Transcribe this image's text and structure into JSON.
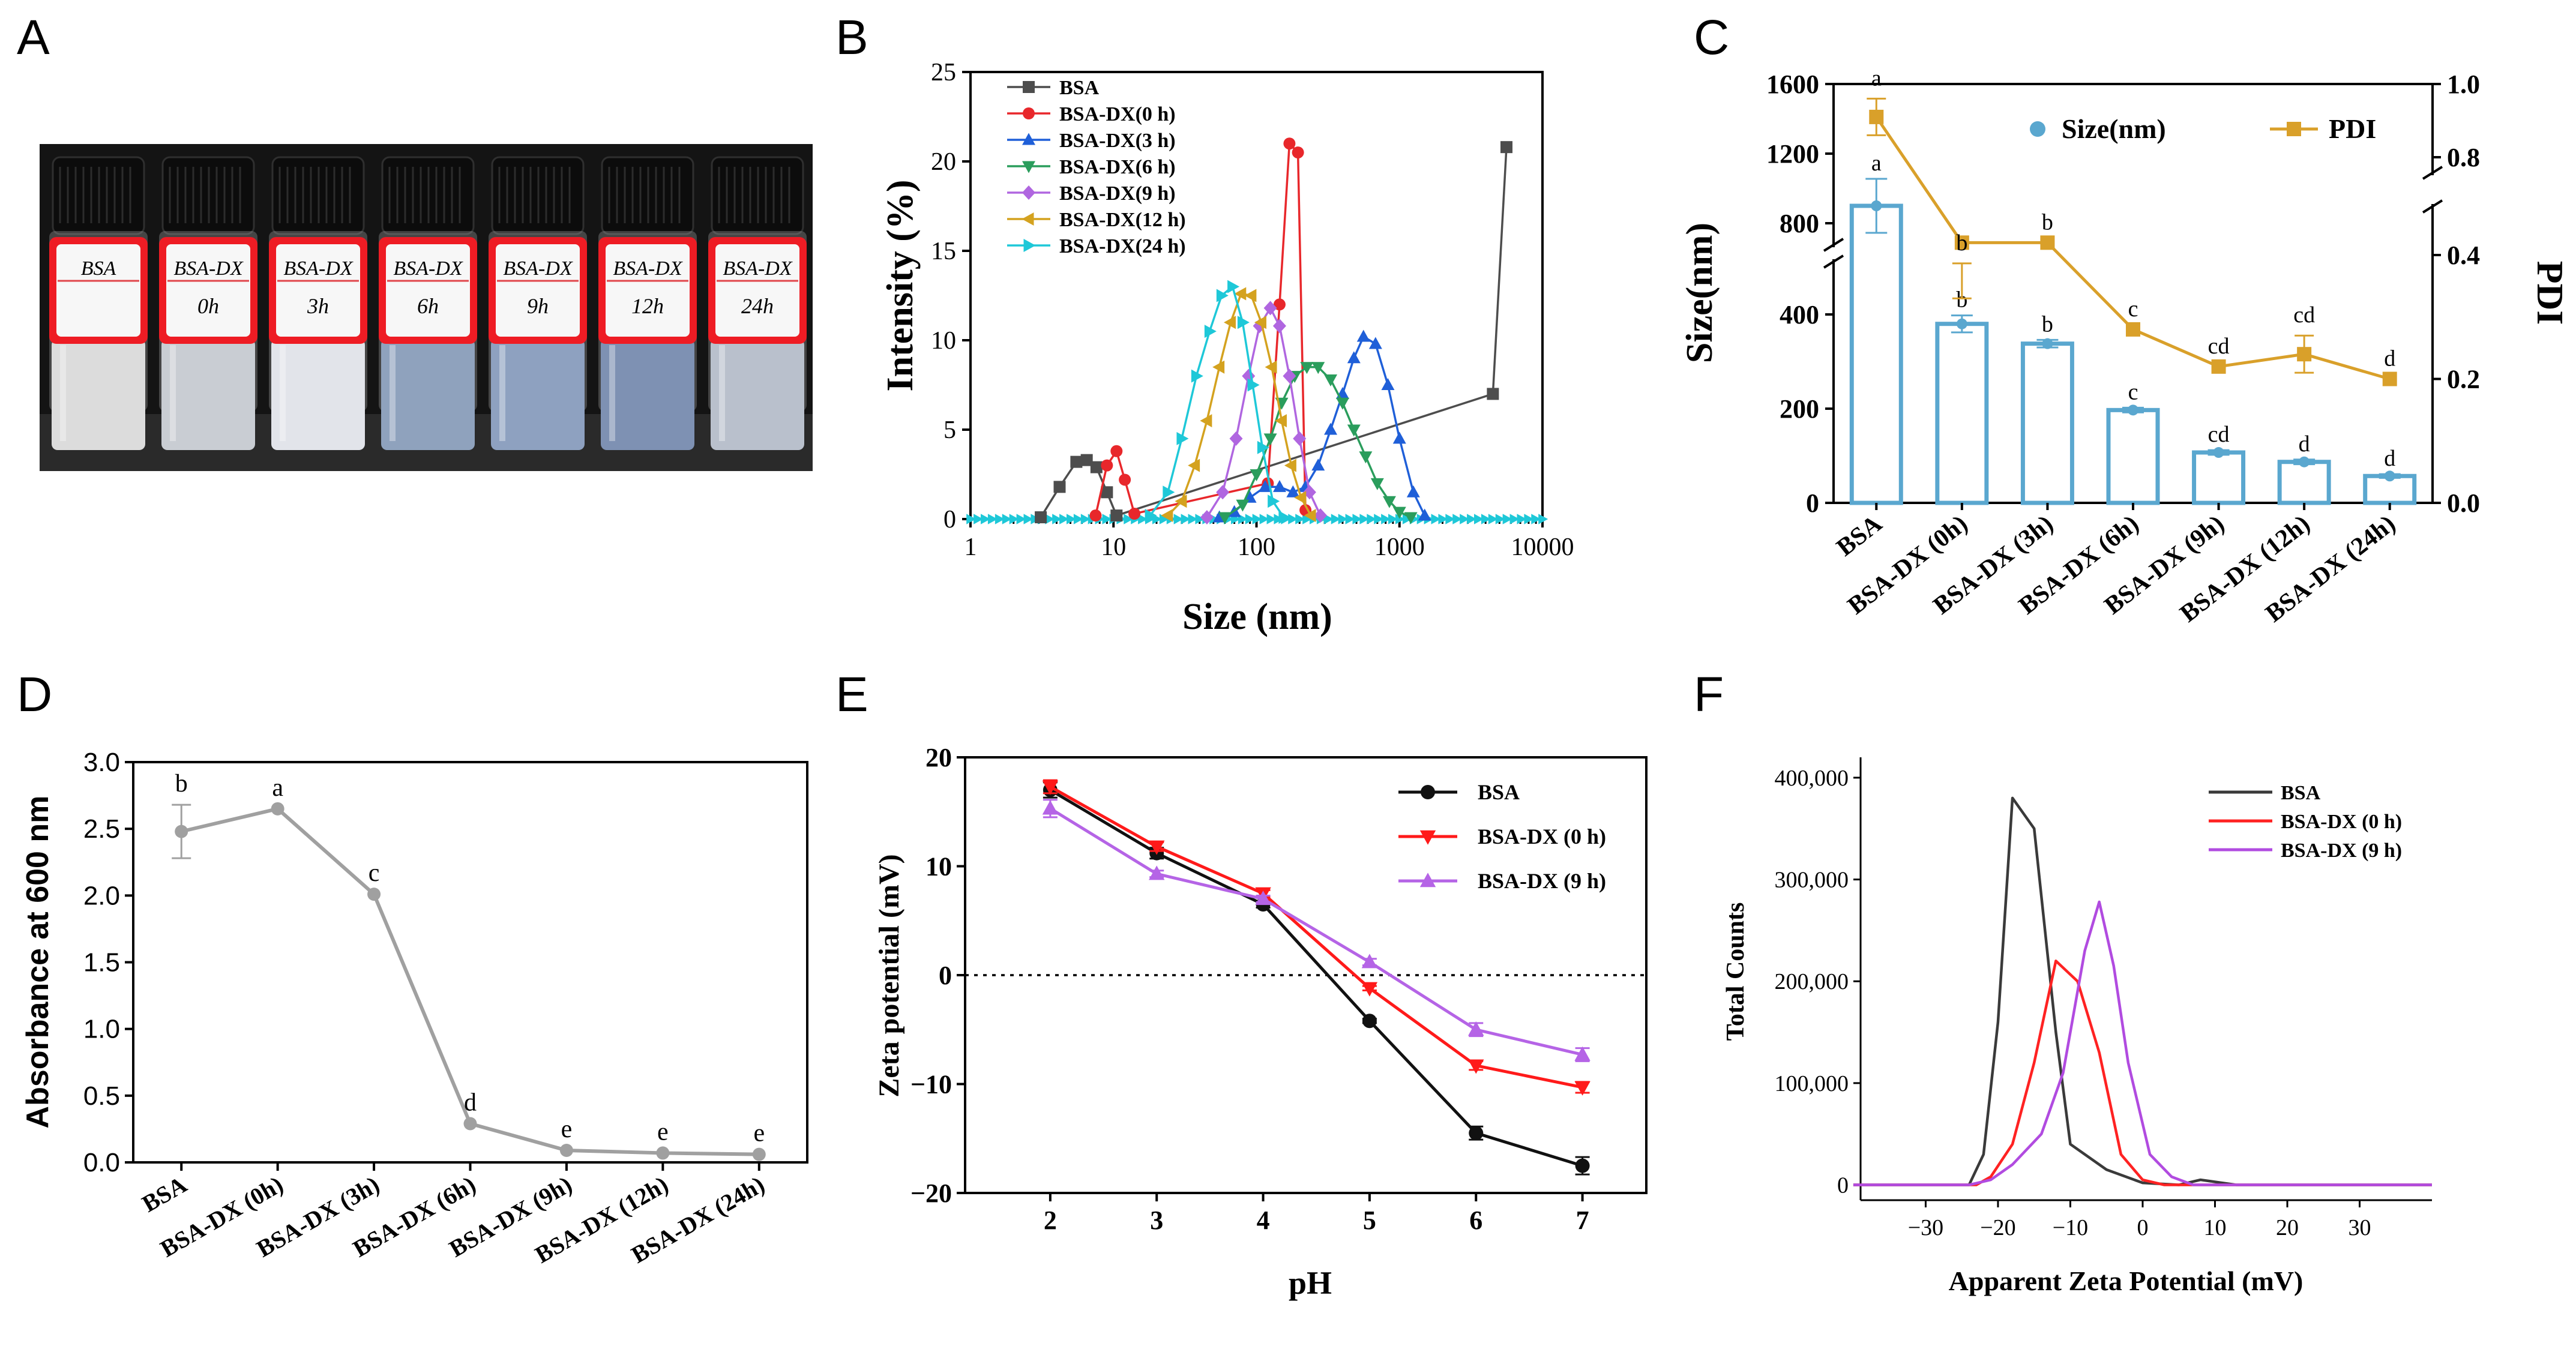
{
  "figure": {
    "panel_letters": [
      "A",
      "B",
      "C",
      "D",
      "E",
      "F"
    ]
  },
  "photo": {
    "vial_labels": [
      {
        "line1": "BSA",
        "line2": ""
      },
      {
        "line1": "BSA-DX",
        "line2": "0h"
      },
      {
        "line1": "BSA-DX",
        "line2": "3h"
      },
      {
        "line1": "BSA-DX",
        "line2": "6h"
      },
      {
        "line1": "BSA-DX",
        "line2": "9h"
      },
      {
        "line1": "BSA-DX",
        "line2": "12h"
      },
      {
        "line1": "BSA-DX",
        "line2": "24h"
      }
    ],
    "liquid_colors": [
      "#dcdcdc",
      "#c9cdd3",
      "#e2e4ea",
      "#8fa2bd",
      "#8ea1c0",
      "#7e91b3",
      "#b9c0cc"
    ]
  },
  "chart_data": [
    {
      "panel": "B",
      "type": "line",
      "xscale": "log",
      "xlabel": "Size (nm)",
      "ylabel": "Intensity (%)",
      "xlim": [
        1,
        10000
      ],
      "ylim": [
        0,
        25
      ],
      "xticks": [
        1,
        10,
        100,
        1000,
        10000
      ],
      "xtick_labels": [
        "1",
        "10",
        "100",
        "1000",
        "10000"
      ],
      "yticks": [
        0,
        5,
        10,
        15,
        20,
        25
      ],
      "ytick_labels": [
        "0",
        "5",
        "10",
        "15",
        "20",
        "25"
      ],
      "legend": "top-left",
      "series": [
        {
          "name": "BSA",
          "color": "#4d4d4d",
          "marker": "square",
          "x": [
            3.1,
            4.2,
            5.5,
            6.5,
            7.6,
            9.0,
            10.5,
            4500,
            5600
          ],
          "y": [
            0.1,
            1.8,
            3.2,
            3.3,
            2.9,
            1.5,
            0.2,
            7.0,
            20.8
          ]
        },
        {
          "name": "BSA-DX(0 h)",
          "color": "#e8272b",
          "marker": "circle",
          "x": [
            7.5,
            9.0,
            10.5,
            12.0,
            14.0,
            120,
            145,
            170,
            195,
            220
          ],
          "y": [
            0.2,
            3.0,
            3.8,
            2.2,
            0.3,
            2.0,
            12.0,
            21.0,
            20.5,
            0.5
          ]
        },
        {
          "name": "BSA-DX(3 h)",
          "color": "#1f5fd8",
          "marker": "triangle-up",
          "x": [
            55,
            70,
            90,
            115,
            145,
            180,
            220,
            270,
            330,
            400,
            480,
            560,
            680,
            830,
            1000,
            1250,
            1500
          ],
          "y": [
            0.1,
            0.4,
            1.2,
            1.8,
            1.8,
            1.5,
            1.8,
            3.0,
            5.0,
            7.0,
            9.0,
            10.2,
            9.8,
            7.5,
            4.5,
            1.5,
            0.2
          ]
        },
        {
          "name": "BSA-DX(6 h)",
          "color": "#2a9d5c",
          "marker": "triangle-down",
          "x": [
            60,
            80,
            100,
            125,
            150,
            185,
            225,
            270,
            330,
            400,
            480,
            580,
            700,
            850,
            1000,
            1200
          ],
          "y": [
            0.1,
            0.8,
            2.5,
            4.5,
            6.5,
            8.0,
            8.5,
            8.5,
            7.8,
            6.5,
            5.0,
            3.5,
            2.0,
            1.0,
            0.4,
            0.1
          ]
        },
        {
          "name": "BSA-DX(9 h)",
          "color": "#b066e0",
          "marker": "diamond",
          "x": [
            45,
            58,
            72,
            88,
            105,
            125,
            145,
            170,
            200,
            235,
            280
          ],
          "y": [
            0.1,
            1.5,
            4.5,
            8.0,
            10.8,
            11.8,
            10.8,
            8.0,
            4.5,
            1.5,
            0.2
          ]
        },
        {
          "name": "BSA-DX(12 h)",
          "color": "#d4a21f",
          "marker": "triangle-left",
          "x": [
            24,
            30,
            37,
            45,
            55,
            66,
            78,
            92,
            108,
            128,
            150,
            175,
            205,
            240
          ],
          "y": [
            0.2,
            1.0,
            3.0,
            5.5,
            8.5,
            11.0,
            12.6,
            12.5,
            11.0,
            8.5,
            5.5,
            3.0,
            1.2,
            0.2
          ]
        },
        {
          "name": "BSA-DX(24 h)",
          "color": "#1ec8d8",
          "marker": "triangle-right",
          "x": [
            18,
            24,
            30,
            38,
            47,
            57,
            68,
            80,
            94,
            110,
            130,
            155
          ],
          "y": [
            0.2,
            1.5,
            4.5,
            8.0,
            10.5,
            12.5,
            13.0,
            11.0,
            7.5,
            4.0,
            1.0,
            0.1
          ]
        }
      ],
      "baseline_marker_color": "#1ec8d8"
    },
    {
      "panel": "C",
      "type": "bar",
      "categories": [
        "BSA",
        "BSA-DX (0h)",
        "BSA-DX (3h)",
        "BSA-DX (6h)",
        "BSA-DX (9h)",
        "BSA-DX (12h)",
        "BSA-DX (24h)"
      ],
      "ylabel": "Size(nm)",
      "y2label": "PDI",
      "ylim": [
        0,
        1600
      ],
      "y_axis_break": [
        450,
        700
      ],
      "yticks": [
        0,
        200,
        400,
        800,
        1200,
        1600
      ],
      "ytick_labels": [
        "0",
        "200",
        "400",
        "800",
        "1200",
        "1600"
      ],
      "y2lim": [
        0,
        1.0
      ],
      "y2_axis_break": [
        0.47,
        0.77
      ],
      "y2ticks": [
        0.0,
        0.2,
        0.4,
        0.8,
        1.0
      ],
      "y2tick_labels": [
        "0.0",
        "0.2",
        "0.4",
        "0.8",
        "1.0"
      ],
      "legend": "top-right",
      "series": [
        {
          "name": "Size(nm)",
          "type": "bar",
          "color": "#5aa7cf",
          "values": [
            900,
            380,
            338,
            197,
            107,
            87,
            57
          ],
          "errors": [
            155,
            18,
            8,
            5,
            5,
            5,
            4
          ],
          "letters": [
            "a",
            "b",
            "b",
            "c",
            "cd",
            "d",
            "d"
          ]
        },
        {
          "name": "PDI",
          "type": "line",
          "color": "#d9a02a",
          "values": [
            0.91,
            0.42,
            0.42,
            0.28,
            0.22,
            0.24,
            0.2
          ],
          "errors": [
            0.05,
            0.09,
            0.0,
            0.0,
            0.0,
            0.03,
            0.0
          ],
          "letters": [
            "a",
            "b",
            "b",
            "c",
            "cd",
            "cd",
            "d"
          ]
        }
      ]
    },
    {
      "panel": "D",
      "type": "line",
      "categories": [
        "BSA",
        "BSA-DX (0h)",
        "BSA-DX (3h)",
        "BSA-DX (6h)",
        "BSA-DX (9h)",
        "BSA-DX (12h)",
        "BSA-DX (24h)"
      ],
      "ylabel": "Absorbance at 600 nm",
      "ylim": [
        0,
        3.0
      ],
      "yticks": [
        0.0,
        0.5,
        1.0,
        1.5,
        2.0,
        2.5,
        3.0
      ],
      "ytick_labels": [
        "0.0",
        "0.5",
        "1.0",
        "1.5",
        "2.0",
        "2.5",
        "3.0"
      ],
      "series": [
        {
          "name": "Absorbance",
          "color": "#a0a0a0",
          "values": [
            2.48,
            2.65,
            2.01,
            0.29,
            0.09,
            0.07,
            0.06
          ],
          "errors": [
            0.2,
            0.0,
            0.0,
            0.0,
            0.0,
            0.0,
            0.0
          ],
          "letters": [
            "b",
            "a",
            "c",
            "d",
            "e",
            "e",
            "e"
          ]
        }
      ]
    },
    {
      "panel": "E",
      "type": "line",
      "xlabel": "pH",
      "ylabel": "Zeta potential (mV)",
      "xlim": [
        1.2,
        7.6
      ],
      "ylim": [
        -20,
        20
      ],
      "xticks": [
        2,
        3,
        4,
        5,
        6,
        7
      ],
      "xtick_labels": [
        "2",
        "3",
        "4",
        "5",
        "6",
        "7"
      ],
      "yticks": [
        -20,
        -10,
        0,
        10,
        20
      ],
      "ytick_labels": [
        "−20",
        "−10",
        "0",
        "10",
        "20"
      ],
      "zero_line": "dotted",
      "legend": "top-right",
      "series": [
        {
          "name": "BSA",
          "color": "#111111",
          "marker": "circle",
          "x": [
            2,
            3,
            4,
            5,
            6,
            7
          ],
          "y": [
            17.0,
            11.2,
            6.5,
            -4.2,
            -14.5,
            -17.5
          ],
          "errors": [
            0.7,
            0.5,
            0.3,
            0.2,
            0.6,
            0.8
          ]
        },
        {
          "name": "BSA-DX (0 h)",
          "color": "#ff1a1a",
          "marker": "triangle-down",
          "x": [
            2,
            3,
            4,
            5,
            6,
            7
          ],
          "y": [
            17.3,
            11.8,
            7.5,
            -1.2,
            -8.3,
            -10.3
          ],
          "errors": [
            0.6,
            0.4,
            0.3,
            0.2,
            0.4,
            0.5
          ]
        },
        {
          "name": "BSA-DX (9 h)",
          "color": "#b564e6",
          "marker": "triangle-up",
          "x": [
            2,
            3,
            4,
            5,
            6,
            7
          ],
          "y": [
            15.3,
            9.3,
            7.0,
            1.2,
            -5.0,
            -7.3
          ],
          "errors": [
            0.8,
            0.3,
            0.3,
            0.3,
            0.6,
            0.6
          ]
        }
      ]
    },
    {
      "panel": "F",
      "type": "line",
      "xlabel": "Apparent Zeta Potential (mV)",
      "ylabel": "Total Counts",
      "xlim": [
        -39,
        40
      ],
      "ylim": [
        -15000,
        420000
      ],
      "xticks": [
        -30,
        -20,
        -10,
        0,
        10,
        20,
        30
      ],
      "xtick_labels": [
        "−30",
        "−20",
        "−10",
        "0",
        "10",
        "20",
        "30"
      ],
      "yticks": [
        0,
        100000,
        200000,
        300000,
        400000
      ],
      "ytick_labels": [
        "0",
        "100,000",
        "200,000",
        "300,000",
        "400,000"
      ],
      "legend": "top-right",
      "series": [
        {
          "name": "BSA",
          "color": "#3a3a3a",
          "x": [
            -40,
            -24,
            -22,
            -20,
            -18,
            -15,
            -12,
            -10,
            -5,
            0,
            5,
            8,
            10,
            13,
            40
          ],
          "y": [
            0,
            0,
            30000,
            160000,
            380000,
            350000,
            150000,
            40000,
            15000,
            2000,
            0,
            5000,
            3000,
            0,
            0
          ]
        },
        {
          "name": "BSA-DX (0 h)",
          "color": "#ff2222",
          "x": [
            -40,
            -23,
            -21,
            -18,
            -15,
            -12,
            -9,
            -6,
            -3,
            0,
            3,
            40
          ],
          "y": [
            0,
            0,
            8000,
            40000,
            120000,
            220000,
            200000,
            130000,
            30000,
            5000,
            0,
            0
          ]
        },
        {
          "name": "BSA-DX (9 h)",
          "color": "#b14be0",
          "x": [
            -40,
            -24,
            -21,
            -18,
            -14,
            -11,
            -8,
            -6,
            -4,
            -2,
            1,
            4,
            7,
            10,
            40
          ],
          "y": [
            0,
            0,
            5000,
            20000,
            50000,
            110000,
            230000,
            278000,
            215000,
            120000,
            30000,
            8000,
            0,
            0,
            0
          ]
        }
      ]
    }
  ]
}
